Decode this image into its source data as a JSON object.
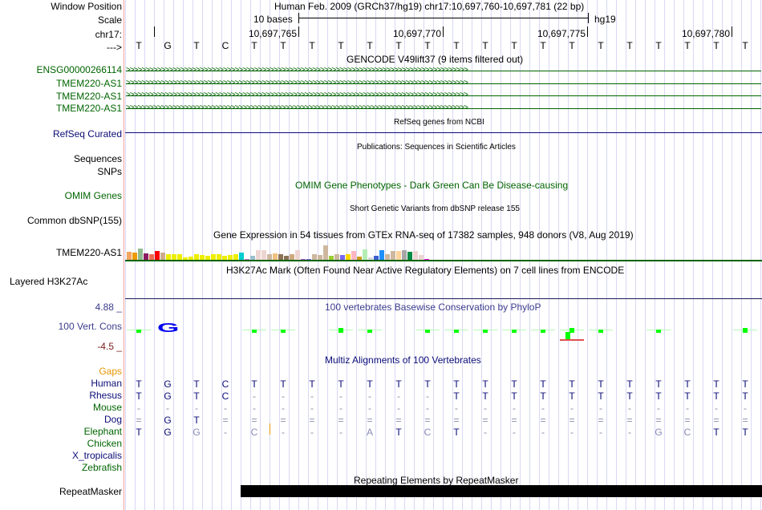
{
  "labels": {
    "window_position": "Window Position",
    "scale": "Scale",
    "chrom": "chr17:",
    "strand": "--->",
    "ensg": "ENSG00000266114",
    "tmem1": "TMEM220-AS1",
    "tmem2": "TMEM220-AS1",
    "tmem3": "TMEM220-AS1",
    "refseq": "RefSeq Curated",
    "sequences": "Sequences",
    "snps": "SNPs",
    "omim": "OMIM Genes",
    "dbsnp": "Common dbSNP(155)",
    "gtex": "TMEM220-AS1",
    "h3k27ac": "Layered H3K27Ac",
    "cons_max": "4.88 _",
    "cons": "100 Vert. Cons",
    "cons_min": "-4.5 _",
    "gaps": "Gaps",
    "human": "Human",
    "rhesus": "Rhesus",
    "mouse": "Mouse",
    "dog": "Dog",
    "elephant": "Elephant",
    "chicken": "Chicken",
    "xtrop": "X_tropicalis",
    "zebrafish": "Zebrafish",
    "repeatmasker": "RepeatMasker"
  },
  "header": {
    "assembly": "Human Feb. 2009 (GRCh37/hg19)   chr17:10,697,760-10,697,781 (22 bp)",
    "scale_text": "10 bases",
    "scale_db": "hg19",
    "ticks": [
      "10,697,765",
      "10,697,770",
      "10,697,775",
      "10,697,780"
    ]
  },
  "sequence": [
    "T",
    "G",
    "T",
    "C",
    "T",
    "T",
    "T",
    "T",
    "T",
    "T",
    "T",
    "T",
    "T",
    "T",
    "T",
    "T",
    "T",
    "T",
    "T",
    "T",
    "T",
    "T"
  ],
  "tracks": {
    "gencode": "GENCODE V49lift37 (9 items filtered out)",
    "refseq": "RefSeq genes from NCBI",
    "pubs": "Publications: Sequences in Scientific Articles",
    "omim": "OMIM Gene Phenotypes - Dark Green Can Be Disease-causing",
    "dbsnp": "Short Genetic Variants from dbSNP release 155",
    "gtex": "Gene Expression in 54 tissues from GTEx RNA-seq of 17382 samples, 948 donors (V8, Aug 2019)",
    "h3k27ac": "H3K27Ac Mark (Often Found Near Active Regulatory Elements) on 7 cell lines from ENCODE",
    "phylop": "100 vertebrates Basewise Conservation by PhyloP",
    "multiz": "Multiz Alignments of 100 Vertebrates",
    "rmsk": "Repeating Elements by RepeatMasker"
  },
  "alignment": {
    "rhesus": [
      "T",
      "G",
      "T",
      "C",
      "-",
      "-",
      "-",
      "-",
      "-",
      "-",
      "-",
      "T",
      "T",
      "T",
      "T",
      "T",
      "T",
      "T",
      "T",
      "T",
      "T",
      "T"
    ],
    "mouse": [
      "-",
      "-",
      "-",
      "-",
      "-",
      "-",
      "-",
      "-",
      "-",
      "-",
      "-",
      "-",
      "-",
      "-",
      "-",
      "-",
      "-",
      "-",
      "-",
      "-",
      "-",
      "-"
    ],
    "dog": [
      "=",
      "G",
      "T",
      "=",
      "=",
      "=",
      "=",
      "=",
      "=",
      "=",
      "=",
      "=",
      "=",
      "=",
      "=",
      "=",
      "=",
      "=",
      "=",
      "=",
      "=",
      "="
    ],
    "elephant": [
      "T",
      "G",
      "G",
      "-",
      "C",
      "-",
      "-",
      "-",
      "A",
      "T",
      "C",
      "T",
      "-",
      "-",
      "-",
      "-",
      "-",
      "-",
      "G",
      "C",
      "T",
      "T"
    ],
    "elephant_light": [
      0,
      0,
      1,
      0,
      1,
      0,
      0,
      0,
      1,
      0,
      1,
      0,
      0,
      0,
      0,
      0,
      0,
      0,
      1,
      1,
      0,
      0
    ]
  },
  "gtex_values": [
    10,
    9,
    14,
    8,
    7,
    11,
    9,
    7,
    7,
    7,
    3,
    4,
    7,
    6,
    5,
    7,
    7,
    5,
    6,
    7,
    9,
    1,
    5,
    12,
    12,
    7,
    8,
    7,
    5,
    7,
    12,
    1,
    1,
    7,
    6,
    18,
    5,
    7,
    6,
    7,
    11,
    4,
    13,
    3,
    5,
    12,
    7,
    11,
    11,
    12,
    10,
    11,
    6,
    1
  ],
  "gtex_colors": [
    "#f4a460",
    "#ee9a00",
    "#8fbc8f",
    "#8b1c62",
    "#ee6a50",
    "#ff0000",
    "#cdaa8d",
    "#eeee00",
    "#eeee00",
    "#eeee00",
    "#eeee00",
    "#eeee00",
    "#eeee00",
    "#eeee00",
    "#eeee00",
    "#eeee00",
    "#eeee00",
    "#eeee00",
    "#eeee00",
    "#eeee00",
    "#00ced1",
    "#da70d6",
    "#9ac0cd",
    "#eed5d2",
    "#eed5d2",
    "#cdb79e",
    "#f0c080",
    "#8b7355",
    "#8b7355",
    "#cdaa7d",
    "#eed5d2",
    "#b452cd",
    "#7a67ee",
    "#cdb79e",
    "#cdb79e",
    "#cdb79e",
    "#9acd32",
    "#cdb79e",
    "#7b68ee",
    "#ffd700",
    "#ffb6c1",
    "#cd9b1d",
    "#b4eeb4",
    "#d9d9d9",
    "#3a5fcd",
    "#1e90ff",
    "#cdb79e",
    "#cdb79e",
    "#ffd39b",
    "#a6a6a6",
    "#008b45",
    "#eed5d2",
    "#eed5d2",
    "#ee00ee"
  ]
}
